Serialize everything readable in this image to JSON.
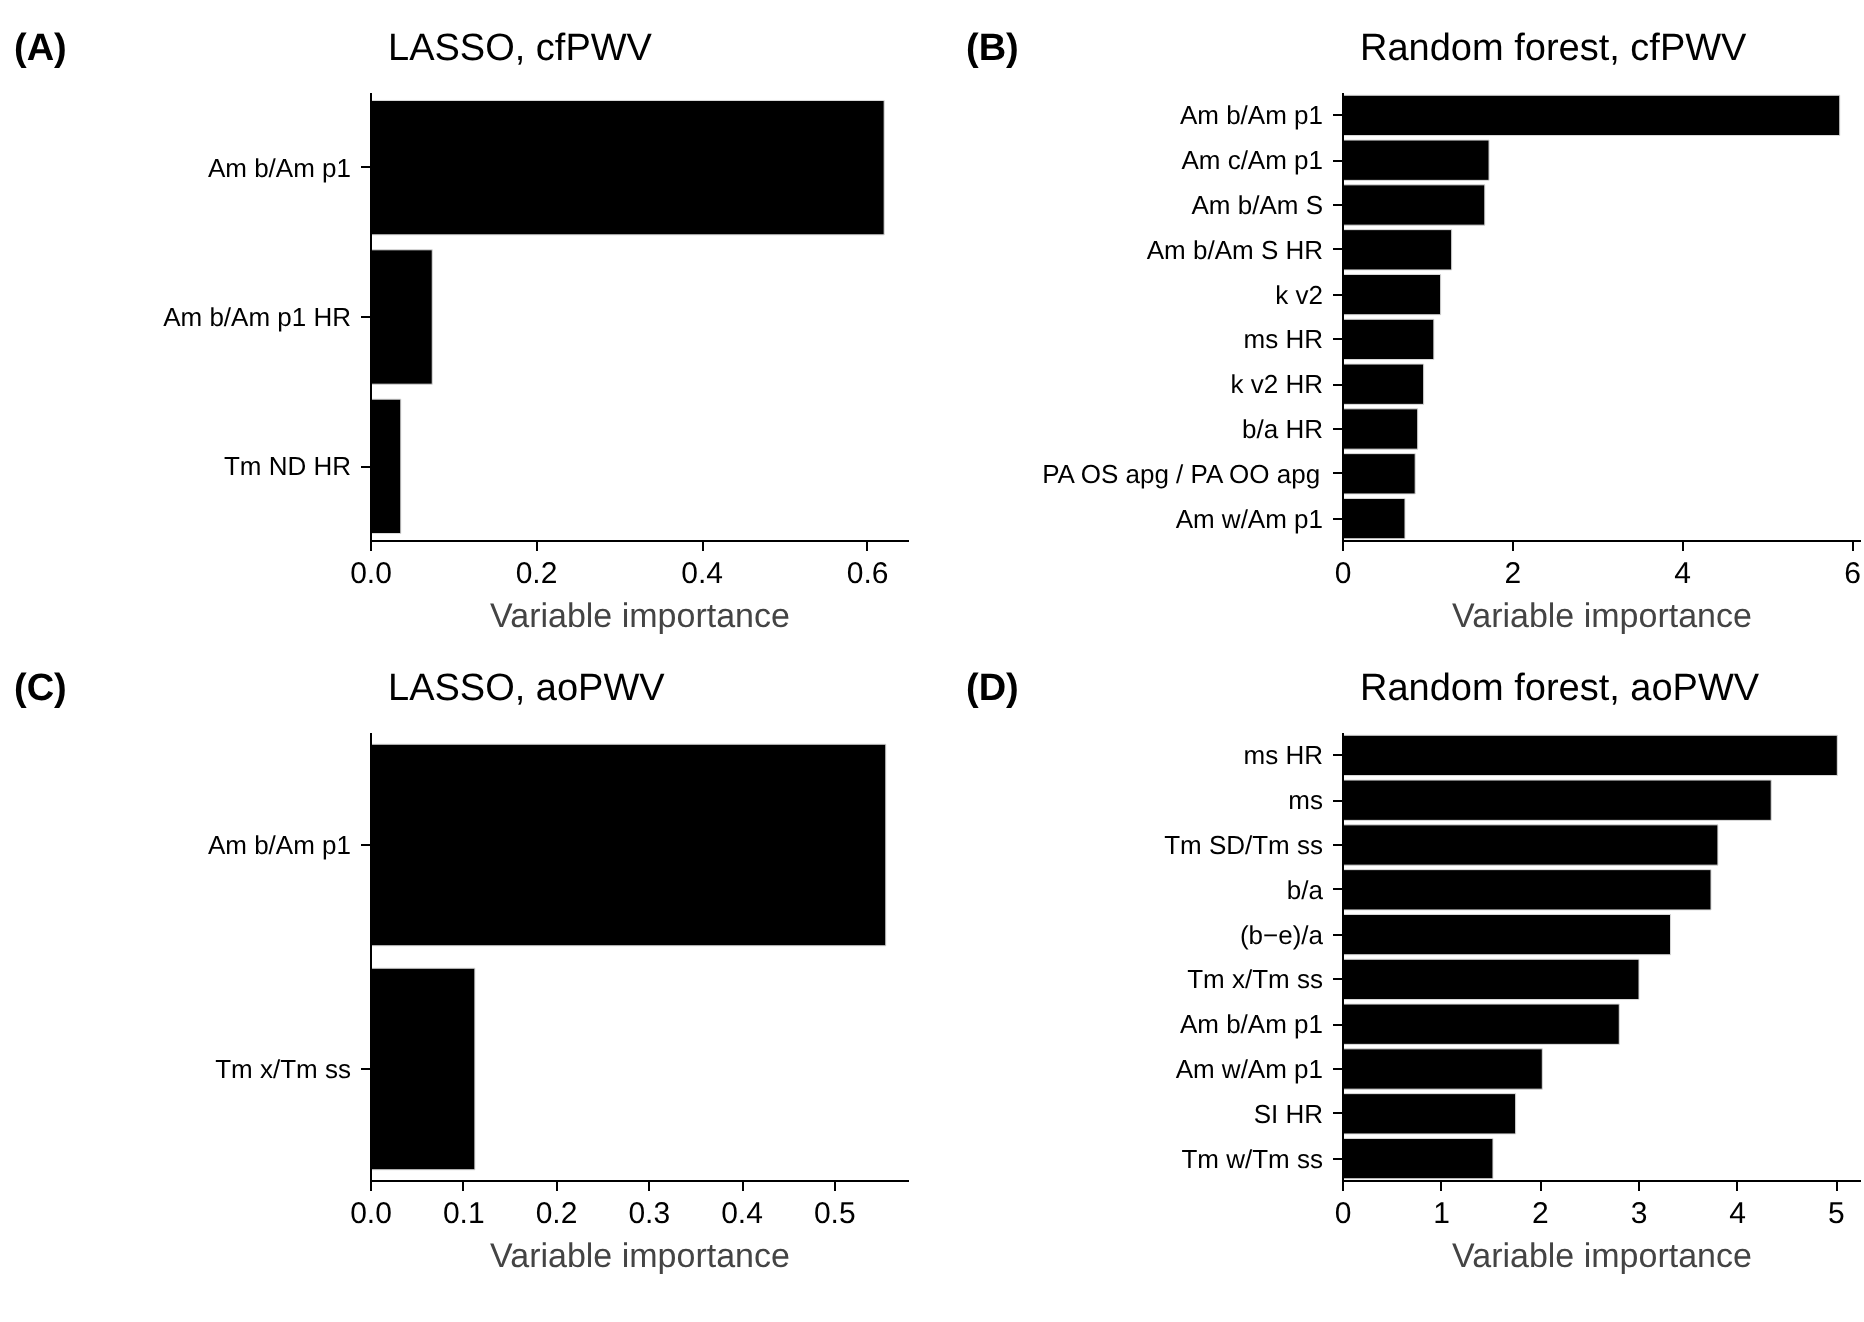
{
  "chart_data": [
    {
      "type": "bar",
      "orientation": "horizontal",
      "title": "LASSO, cfPWV",
      "annotations": [
        "(A)"
      ],
      "xlabel": "Variable importance",
      "categories": [
        "Am b/Am p1",
        "Am b/Am p1 HR",
        "Tm ND HR"
      ],
      "values": [
        0.62,
        0.074,
        0.036
      ],
      "color": "#000000",
      "xlim": [
        0,
        0.65
      ],
      "xticks": [
        {
          "value": 0,
          "label": "0.0"
        },
        0.2,
        0.4,
        0.6
      ],
      "grid": false
    },
    {
      "type": "bar",
      "orientation": "horizontal",
      "title": "Random forest, cfPWV",
      "annotations": [
        "(B)"
      ],
      "xlabel": "Variable importance",
      "categories": [
        "Am b/Am p1",
        "Am c/Am p1",
        "Am b/Am S",
        "Am b/Am S HR",
        "k v2",
        "ms HR",
        "k v2 HR",
        "b/a HR",
        "PA OS apg / PA OO apg",
        "Am w/Am p1"
      ],
      "values": [
        5.85,
        1.72,
        1.67,
        1.28,
        1.15,
        1.07,
        0.95,
        0.88,
        0.85,
        0.73
      ],
      "color": "#000000",
      "xlim": [
        0,
        6.1
      ],
      "xticks": [
        0,
        2,
        4,
        6
      ],
      "grid": false
    },
    {
      "type": "bar",
      "orientation": "horizontal",
      "title": "LASSO, aoPWV",
      "annotations": [
        "(C)"
      ],
      "xlabel": "Variable importance",
      "categories": [
        "Am b/Am p1",
        "Tm x/Tm ss"
      ],
      "values": [
        0.555,
        0.112
      ],
      "color": "#000000",
      "xlim": [
        0,
        0.58
      ],
      "xticks": [
        {
          "value": 0,
          "label": "0.0"
        },
        0.1,
        0.2,
        0.3,
        0.4,
        0.5
      ],
      "grid": false
    },
    {
      "type": "bar",
      "orientation": "horizontal",
      "title": "Random forest, aoPWV",
      "annotations": [
        "(D)"
      ],
      "xlabel": "Variable importance",
      "categories": [
        "ms HR",
        "ms",
        "Tm SD/Tm ss",
        "b/a",
        "(b−e)/a",
        "Tm x/Tm ss",
        "Am b/Am p1",
        "Am w/Am p1",
        "SI HR",
        "Tm w/Tm ss"
      ],
      "values": [
        5.01,
        4.34,
        3.8,
        3.73,
        3.32,
        3.0,
        2.8,
        2.02,
        1.75,
        1.52
      ],
      "color": "#000000",
      "xlim": [
        0,
        5.25
      ],
      "xticks": [
        0,
        1,
        2,
        3,
        4,
        5
      ],
      "grid": false
    }
  ]
}
